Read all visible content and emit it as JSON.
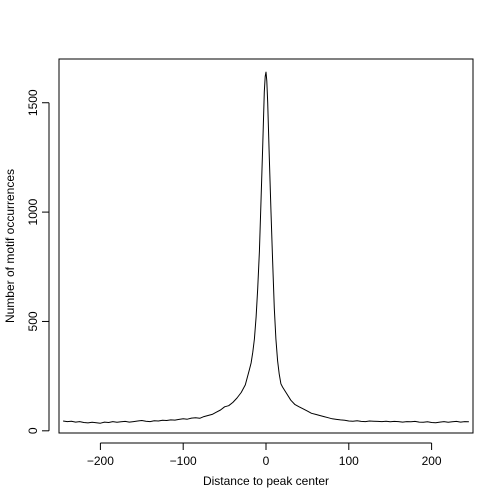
{
  "chart_data": {
    "type": "line",
    "title": "",
    "xlabel": "Distance to peak center",
    "ylabel": "Number of motif occurrences",
    "xlim": [
      -250,
      250
    ],
    "ylim": [
      -10,
      1700
    ],
    "x_ticks": [
      -200,
      -100,
      0,
      100,
      200
    ],
    "x_tick_labels": [
      "−200",
      "−100",
      "0",
      "100",
      "200"
    ],
    "y_ticks": [
      0,
      500,
      1000,
      1500
    ],
    "y_tick_labels": [
      "0",
      "500",
      "1000",
      "1500"
    ],
    "grid": false,
    "series": [
      {
        "color": "#000000",
        "x": [
          -245,
          -240,
          -235,
          -230,
          -225,
          -220,
          -215,
          -210,
          -205,
          -200,
          -195,
          -190,
          -185,
          -180,
          -175,
          -170,
          -165,
          -160,
          -155,
          -150,
          -145,
          -140,
          -135,
          -130,
          -125,
          -120,
          -115,
          -110,
          -105,
          -100,
          -95,
          -90,
          -85,
          -80,
          -75,
          -70,
          -65,
          -60,
          -55,
          -50,
          -45,
          -40,
          -35,
          -30,
          -25,
          -20,
          -18,
          -16,
          -14,
          -12,
          -10,
          -8,
          -6,
          -4,
          -2,
          -1,
          0,
          1,
          2,
          4,
          6,
          8,
          10,
          12,
          14,
          16,
          18,
          20,
          25,
          30,
          35,
          40,
          45,
          50,
          55,
          60,
          65,
          70,
          75,
          80,
          85,
          90,
          95,
          100,
          105,
          110,
          115,
          120,
          125,
          130,
          135,
          140,
          145,
          150,
          155,
          160,
          165,
          170,
          175,
          180,
          185,
          190,
          195,
          200,
          205,
          210,
          215,
          220,
          225,
          230,
          235,
          240,
          245
        ],
        "y": [
          45,
          42,
          44,
          40,
          42,
          38,
          36,
          39,
          37,
          35,
          40,
          38,
          42,
          39,
          41,
          43,
          40,
          42,
          45,
          47,
          44,
          42,
          46,
          45,
          48,
          47,
          50,
          49,
          52,
          55,
          53,
          58,
          60,
          57,
          65,
          70,
          75,
          85,
          95,
          110,
          115,
          130,
          150,
          175,
          210,
          280,
          310,
          360,
          420,
          520,
          650,
          820,
          1050,
          1300,
          1550,
          1620,
          1640,
          1600,
          1500,
          1250,
          1000,
          780,
          560,
          420,
          320,
          260,
          215,
          200,
          170,
          140,
          120,
          110,
          100,
          90,
          80,
          75,
          70,
          65,
          60,
          55,
          52,
          50,
          48,
          45,
          44,
          46,
          43,
          42,
          45,
          44,
          43,
          42,
          44,
          41,
          43,
          42,
          40,
          42,
          41,
          43,
          40,
          39,
          41,
          38,
          37,
          40,
          42,
          39,
          41,
          43,
          40,
          42,
          41
        ]
      }
    ]
  }
}
